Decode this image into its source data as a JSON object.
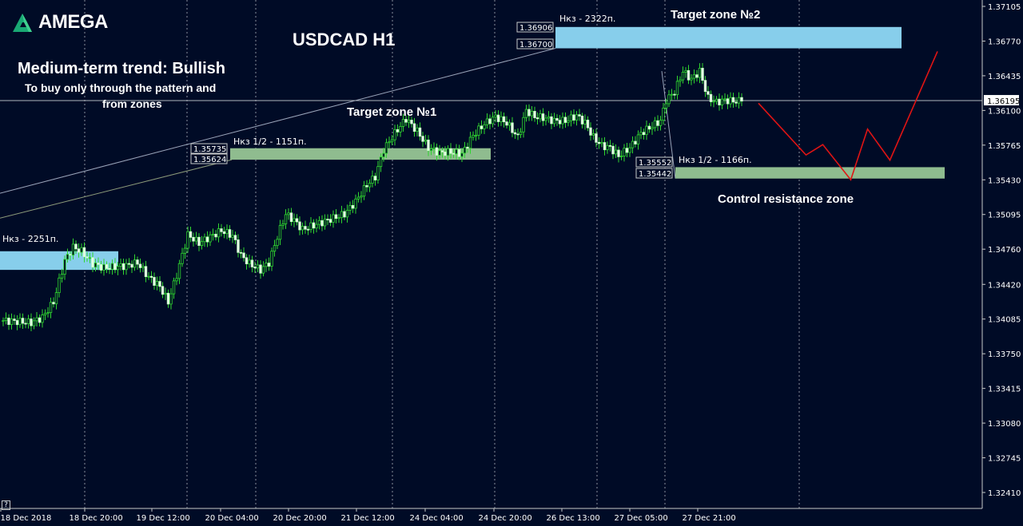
{
  "brand": {
    "name": "AMEGA"
  },
  "chart_data": {
    "type": "candlestick",
    "title": "USDCAD H1",
    "subtitle": "Medium-term trend: Bullish",
    "note_lines": [
      "To buy only through the pattern  and",
      "from zones"
    ],
    "y_axis": {
      "ylim": [
        1.3224,
        1.3716
      ],
      "ticks": [
        "1.37105",
        "1.36770",
        "1.36435",
        "1.36100",
        "1.35765",
        "1.35430",
        "1.35095",
        "1.34760",
        "1.34420",
        "1.34085",
        "1.33750",
        "1.33415",
        "1.33080",
        "1.32745",
        "1.32410"
      ],
      "current_price": "1.36195"
    },
    "x_axis": {
      "ticks": [
        "18 Dec 2018",
        "18 Dec 20:00",
        "19 Dec 12:00",
        "20 Dec 04:00",
        "20 Dec 20:00",
        "21 Dec 12:00",
        "24 Dec 04:00",
        "24 Dec 20:00",
        "26 Dec 13:00",
        "27 Dec 05:00",
        "27 Dec 21:00"
      ]
    },
    "zones": [
      {
        "id": "left-blue",
        "color": "#87ceeb",
        "low": 1.3456,
        "high": 1.3474,
        "label": "Нкз - 2251п."
      },
      {
        "id": "target1-green",
        "color": "#8fbc8f",
        "low": 1.35624,
        "high": 1.35735,
        "label": "Нкз 1/2 - 1151п.",
        "name": "Target zone №1",
        "price_labels": [
          "1.35735",
          "1.35624"
        ]
      },
      {
        "id": "target2-blue",
        "color": "#87ceeb",
        "low": 1.367,
        "high": 1.36906,
        "label": "Нкз - 2322п.",
        "name": "Target zone №2",
        "price_labels": [
          "1.36906",
          "1.36700"
        ]
      },
      {
        "id": "control-green",
        "color": "#8fbc8f",
        "low": 1.35442,
        "high": 1.35552,
        "label": "Нкз 1/2 - 1166п.",
        "name": "Control resistance zone",
        "price_labels": [
          "1.35552",
          "1.35442"
        ]
      }
    ],
    "forecast_path": [
      {
        "t": 270,
        "p": 1.3617
      },
      {
        "t": 287,
        "p": 1.3567
      },
      {
        "t": 293,
        "p": 1.3577
      },
      {
        "t": 303,
        "p": 1.3543
      },
      {
        "t": 309,
        "p": 1.3592
      },
      {
        "t": 317,
        "p": 1.3562
      },
      {
        "t": 334,
        "p": 1.3667
      }
    ],
    "candles_anchors": [
      [
        0,
        1.3407
      ],
      [
        6,
        1.3406
      ],
      [
        10,
        1.3405
      ],
      [
        14,
        1.341
      ],
      [
        18,
        1.3425
      ],
      [
        22,
        1.3465
      ],
      [
        25,
        1.3478
      ],
      [
        28,
        1.3474
      ],
      [
        32,
        1.3462
      ],
      [
        36,
        1.3458
      ],
      [
        40,
        1.3459
      ],
      [
        44,
        1.346
      ],
      [
        48,
        1.3463
      ],
      [
        52,
        1.3449
      ],
      [
        56,
        1.344
      ],
      [
        59,
        1.3425
      ],
      [
        62,
        1.3451
      ],
      [
        66,
        1.349
      ],
      [
        70,
        1.3482
      ],
      [
        74,
        1.3488
      ],
      [
        78,
        1.3494
      ],
      [
        82,
        1.3489
      ],
      [
        85,
        1.347
      ],
      [
        88,
        1.3462
      ],
      [
        92,
        1.3456
      ],
      [
        95,
        1.3463
      ],
      [
        98,
        1.3488
      ],
      [
        101,
        1.351
      ],
      [
        104,
        1.3504
      ],
      [
        107,
        1.3495
      ],
      [
        110,
        1.3498
      ],
      [
        114,
        1.3502
      ],
      [
        118,
        1.3506
      ],
      [
        122,
        1.351
      ],
      [
        126,
        1.3522
      ],
      [
        130,
        1.3538
      ],
      [
        133,
        1.3546
      ],
      [
        136,
        1.3572
      ],
      [
        140,
        1.3588
      ],
      [
        144,
        1.3602
      ],
      [
        148,
        1.359
      ],
      [
        152,
        1.3574
      ],
      [
        156,
        1.3569
      ],
      [
        160,
        1.357
      ],
      [
        164,
        1.3568
      ],
      [
        168,
        1.3586
      ],
      [
        172,
        1.3597
      ],
      [
        176,
        1.3604
      ],
      [
        180,
        1.3598
      ],
      [
        184,
        1.3584
      ],
      [
        187,
        1.361
      ],
      [
        190,
        1.3604
      ],
      [
        193,
        1.3603
      ],
      [
        197,
        1.36
      ],
      [
        201,
        1.36
      ],
      [
        205,
        1.3605
      ],
      [
        208,
        1.3598
      ],
      [
        211,
        1.3584
      ],
      [
        214,
        1.3576
      ],
      [
        217,
        1.3574
      ],
      [
        220,
        1.3566
      ],
      [
        224,
        1.3574
      ],
      [
        228,
        1.3588
      ],
      [
        232,
        1.3595
      ],
      [
        235,
        1.36
      ],
      [
        237,
        1.362
      ],
      [
        240,
        1.3628
      ],
      [
        243,
        1.3648
      ],
      [
        246,
        1.364
      ],
      [
        249,
        1.3648
      ],
      [
        252,
        1.3622
      ],
      [
        255,
        1.3618
      ],
      [
        258,
        1.362
      ],
      [
        261,
        1.3619
      ],
      [
        264,
        1.3619
      ]
    ]
  }
}
